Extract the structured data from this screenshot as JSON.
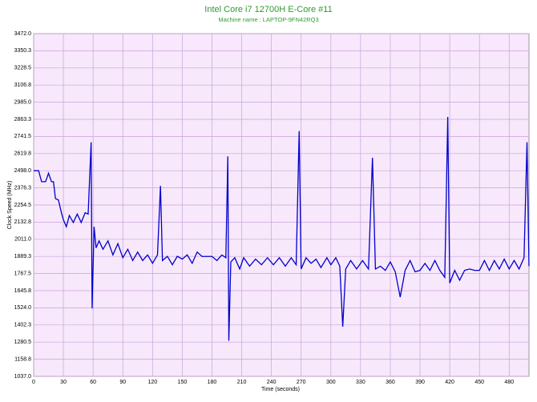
{
  "chart_data": {
    "type": "line",
    "title": "Intel Core i7 12700H E-Core #11",
    "subtitle": "Machine name : LAPTOP-9FN42RQ3",
    "x_label": "Time (seconds)",
    "y_label": "Clock Speed (MHz)",
    "xlim": [
      0,
      500
    ],
    "xticks": [
      0,
      30,
      60,
      90,
      120,
      150,
      180,
      210,
      240,
      270,
      300,
      330,
      360,
      390,
      420,
      450,
      480
    ],
    "ylim": [
      1037,
      3472
    ],
    "yticks": [
      {
        "value": 1037,
        "label": "1037.0"
      },
      {
        "value": 1158.8,
        "label": "1158.8"
      },
      {
        "value": 1280.5,
        "label": "1280.5"
      },
      {
        "value": 1402.3,
        "label": "1402.3"
      },
      {
        "value": 1524,
        "label": "1524.0"
      },
      {
        "value": 1645.8,
        "label": "1645.8"
      },
      {
        "value": 1767.5,
        "label": "1767.5"
      },
      {
        "value": 1889.3,
        "label": "1889.3"
      },
      {
        "value": 2011,
        "label": "2011.0"
      },
      {
        "value": 2132.8,
        "label": "2132.8"
      },
      {
        "value": 2254.5,
        "label": "2254.5"
      },
      {
        "value": 2376.3,
        "label": "2376.3"
      },
      {
        "value": 2498,
        "label": "2498.0"
      },
      {
        "value": 2619.8,
        "label": "2619.8"
      },
      {
        "value": 2741.5,
        "label": "2741.5"
      },
      {
        "value": 2863.3,
        "label": "2863.3"
      },
      {
        "value": 2985,
        "label": "2985.0"
      },
      {
        "value": 3106.8,
        "label": "3106.8"
      },
      {
        "value": 3228.5,
        "label": "3228.5"
      },
      {
        "value": 3350.3,
        "label": "3350.3"
      },
      {
        "value": 3472,
        "label": "3472.0"
      }
    ],
    "grid": true,
    "x": [
      0,
      5,
      8,
      12,
      15,
      18,
      20,
      22,
      25,
      28,
      30,
      33,
      36,
      40,
      44,
      48,
      52,
      55,
      58,
      59,
      61,
      63,
      66,
      70,
      75,
      80,
      85,
      90,
      95,
      100,
      105,
      110,
      115,
      120,
      125,
      128,
      130,
      135,
      140,
      145,
      150,
      155,
      160,
      165,
      170,
      175,
      180,
      185,
      190,
      194,
      196,
      197,
      199,
      203,
      208,
      212,
      218,
      224,
      230,
      236,
      242,
      248,
      254,
      260,
      265,
      268,
      270,
      275,
      280,
      285,
      290,
      296,
      300,
      305,
      309,
      312,
      315,
      320,
      326,
      332,
      338,
      342,
      345,
      350,
      355,
      360,
      365,
      370,
      375,
      380,
      385,
      390,
      395,
      400,
      405,
      410,
      415,
      418,
      420,
      425,
      430,
      435,
      440,
      445,
      450,
      455,
      460,
      465,
      470,
      475,
      480,
      485,
      490,
      495,
      498,
      500
    ],
    "series": [
      {
        "color": "#0000cc",
        "values": [
          2498,
          2498,
          2420,
          2420,
          2480,
          2420,
          2420,
          2300,
          2290,
          2200,
          2150,
          2100,
          2180,
          2130,
          2190,
          2130,
          2200,
          2190,
          2700,
          1520,
          2100,
          1950,
          2000,
          1940,
          2000,
          1900,
          1980,
          1880,
          1940,
          1860,
          1920,
          1860,
          1900,
          1840,
          1900,
          2390,
          1860,
          1890,
          1830,
          1890,
          1870,
          1900,
          1840,
          1920,
          1889,
          1889,
          1889,
          1860,
          1900,
          1880,
          2600,
          1290,
          1850,
          1880,
          1800,
          1880,
          1820,
          1870,
          1830,
          1880,
          1830,
          1880,
          1820,
          1880,
          1830,
          2780,
          1800,
          1880,
          1840,
          1870,
          1810,
          1880,
          1830,
          1880,
          1820,
          1390,
          1800,
          1860,
          1800,
          1860,
          1800,
          2590,
          1800,
          1820,
          1790,
          1850,
          1780,
          1600,
          1790,
          1860,
          1780,
          1790,
          1840,
          1790,
          1860,
          1790,
          1740,
          2880,
          1700,
          1790,
          1720,
          1790,
          1800,
          1790,
          1790,
          1860,
          1790,
          1860,
          1800,
          1870,
          1800,
          1860,
          1800,
          1880,
          2700,
          1820
        ]
      }
    ]
  }
}
